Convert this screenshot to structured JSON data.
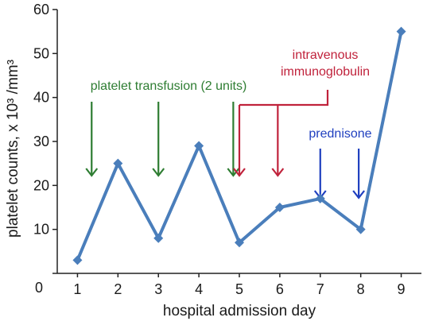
{
  "chart_data": {
    "type": "line",
    "xlabel": "hospital admission day",
    "ylabel": "platelet counts, x 10³ /mm³",
    "x": [
      1,
      2,
      3,
      4,
      5,
      6,
      7,
      8,
      9
    ],
    "xticks": [
      "1",
      "2",
      "3",
      "4",
      "5",
      "6",
      "7",
      "8",
      "9"
    ],
    "yticks": [
      "0",
      "10",
      "20",
      "30",
      "40",
      "50",
      "60"
    ],
    "xlim": [
      0.5,
      9.5
    ],
    "ylim": [
      0,
      60
    ],
    "grid": false,
    "series": [
      {
        "values": [
          3,
          25,
          8,
          29,
          7,
          15,
          17,
          10,
          55
        ],
        "color": "#4a7ebb",
        "marker": "diamond"
      }
    ],
    "annotations": [
      {
        "label_lines": [
          "platelet transfusion (2 units)"
        ],
        "color": "#2e7d32",
        "arrows_at_x": [
          1.35,
          3.0,
          4.85
        ]
      },
      {
        "label_lines": [
          "intravenous",
          "immunoglobulin"
        ],
        "color": "#c0223b",
        "arrows_at_x": [
          5.0,
          5.95
        ]
      },
      {
        "label_lines": [
          "prednisone"
        ],
        "color": "#1f3fbf",
        "arrows_at_x": [
          7.0,
          7.95
        ]
      }
    ]
  }
}
